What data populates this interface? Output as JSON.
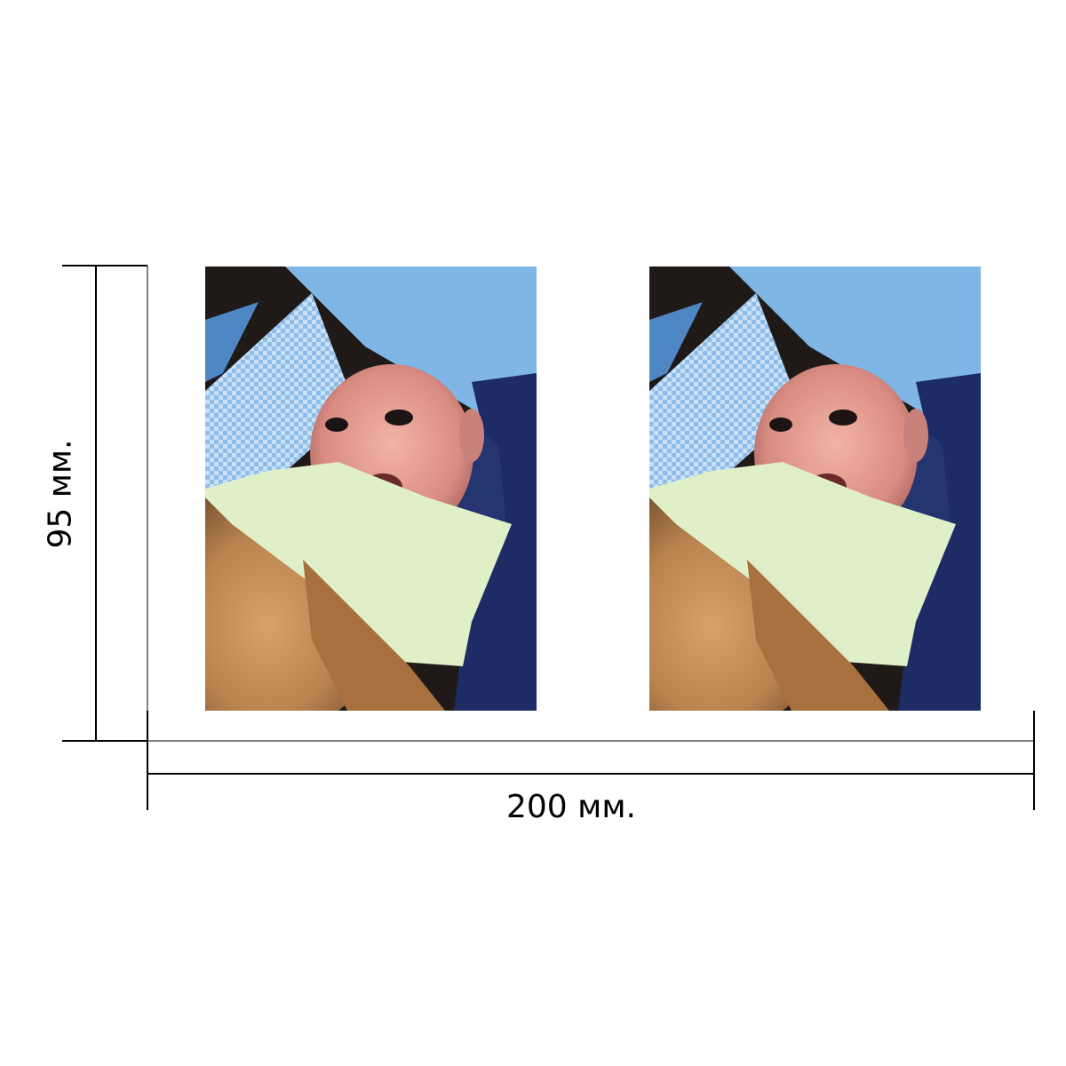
{
  "dimensions": {
    "width_label": "200 мм.",
    "height_label": "95 мм."
  },
  "photos": [
    {
      "subject": "baby-photo"
    },
    {
      "subject": "baby-photo"
    }
  ],
  "colors": {
    "background": "#ffffff",
    "lines": "#000000"
  }
}
